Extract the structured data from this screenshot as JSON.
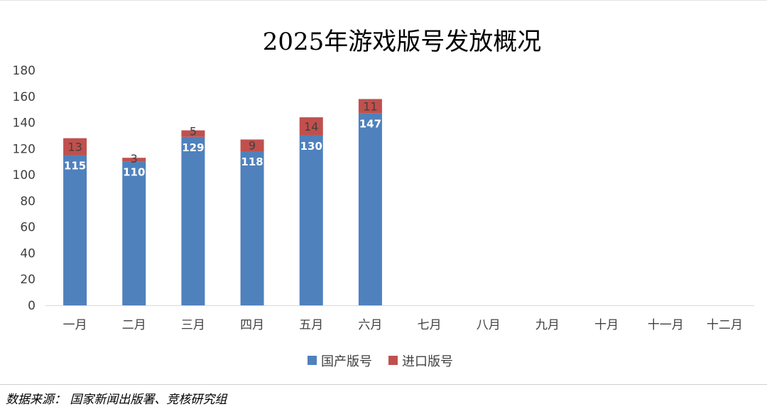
{
  "chart_data": {
    "type": "bar",
    "stacked": true,
    "title": "2025年游戏版号发放概况",
    "categories": [
      "一月",
      "二月",
      "三月",
      "四月",
      "五月",
      "六月",
      "七月",
      "八月",
      "九月",
      "十月",
      "十一月",
      "十二月"
    ],
    "series": [
      {
        "name": "国产版号",
        "color": "#4f81bd",
        "label_color": "#ffffff",
        "values": [
          115,
          110,
          129,
          118,
          130,
          147,
          null,
          null,
          null,
          null,
          null,
          null
        ]
      },
      {
        "name": "进口版号",
        "color": "#c0504d",
        "label_color": "#404040",
        "values": [
          13,
          3,
          5,
          9,
          14,
          11,
          null,
          null,
          null,
          null,
          null,
          null
        ]
      }
    ],
    "ylim": [
      0,
      180
    ],
    "yticks": [
      0,
      20,
      40,
      60,
      80,
      100,
      120,
      140,
      160,
      180
    ],
    "grid": false,
    "legend_position": "bottom",
    "xlabel": "",
    "ylabel": ""
  },
  "source": {
    "text": "数据来源： 国家新闻出版署、竞核研究组"
  }
}
